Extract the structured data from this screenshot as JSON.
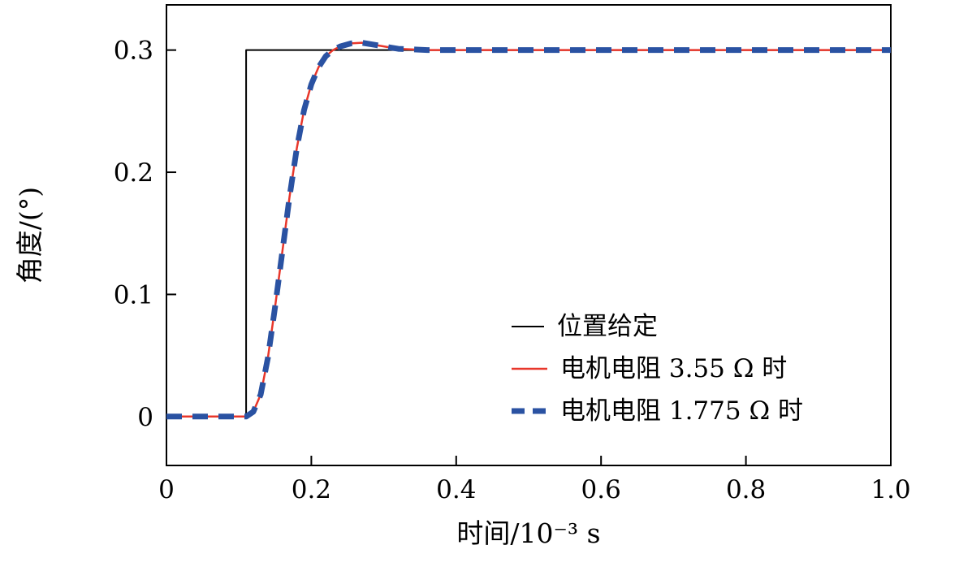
{
  "chart_data": {
    "type": "line",
    "title": "",
    "xlabel": "时间/10⁻³ s",
    "ylabel": "角度/(°)",
    "xlim": [
      0,
      1.0
    ],
    "ylim": [
      -0.04,
      0.337
    ],
    "xticks": [
      0,
      0.2,
      0.4,
      0.6,
      0.8,
      1.0
    ],
    "xtick_labels": [
      "0",
      "0.2",
      "0.4",
      "0.6",
      "0.8",
      "1.0"
    ],
    "yticks": [
      0,
      0.1,
      0.2,
      0.3
    ],
    "ytick_labels": [
      "0",
      "0.1",
      "0.2",
      "0.3"
    ],
    "grid": false,
    "legend_position": "inside lower right",
    "axis_color": "#000000",
    "series": [
      {
        "name": "位置给定",
        "color": "#000000",
        "style": "solid",
        "width": 2,
        "x": [
          0,
          0.11,
          0.11,
          1.0
        ],
        "y": [
          0,
          0,
          0.3,
          0.3
        ]
      },
      {
        "name": "电机电阻 3.55 Ω 时",
        "color": "#e8372b",
        "style": "solid",
        "width": 2.5,
        "x": [
          0,
          0.05,
          0.1,
          0.11,
          0.12,
          0.13,
          0.14,
          0.15,
          0.16,
          0.17,
          0.18,
          0.19,
          0.2,
          0.21,
          0.22,
          0.23,
          0.24,
          0.255,
          0.27,
          0.29,
          0.32,
          0.36,
          0.4,
          0.5,
          0.6,
          0.7,
          0.8,
          0.9,
          1.0
        ],
        "y": [
          0,
          0,
          0,
          0.0,
          0.004,
          0.018,
          0.048,
          0.09,
          0.135,
          0.18,
          0.22,
          0.251,
          0.272,
          0.286,
          0.295,
          0.3,
          0.303,
          0.3055,
          0.306,
          0.304,
          0.301,
          0.3,
          0.3,
          0.3,
          0.3,
          0.3,
          0.3,
          0.3,
          0.3
        ]
      },
      {
        "name": "电机电阻 1.775 Ω 时",
        "color": "#2a52a2",
        "style": "dashed",
        "width": 7,
        "x": [
          0,
          0.05,
          0.1,
          0.11,
          0.12,
          0.13,
          0.14,
          0.15,
          0.16,
          0.17,
          0.18,
          0.19,
          0.2,
          0.21,
          0.22,
          0.23,
          0.24,
          0.255,
          0.27,
          0.29,
          0.32,
          0.36,
          0.4,
          0.5,
          0.6,
          0.7,
          0.8,
          0.9,
          1.0
        ],
        "y": [
          0,
          0,
          0,
          0.0,
          0.004,
          0.018,
          0.048,
          0.09,
          0.135,
          0.18,
          0.22,
          0.251,
          0.272,
          0.286,
          0.295,
          0.3,
          0.303,
          0.3055,
          0.306,
          0.304,
          0.301,
          0.3,
          0.3,
          0.3,
          0.3,
          0.3,
          0.3,
          0.3,
          0.3
        ]
      }
    ]
  }
}
